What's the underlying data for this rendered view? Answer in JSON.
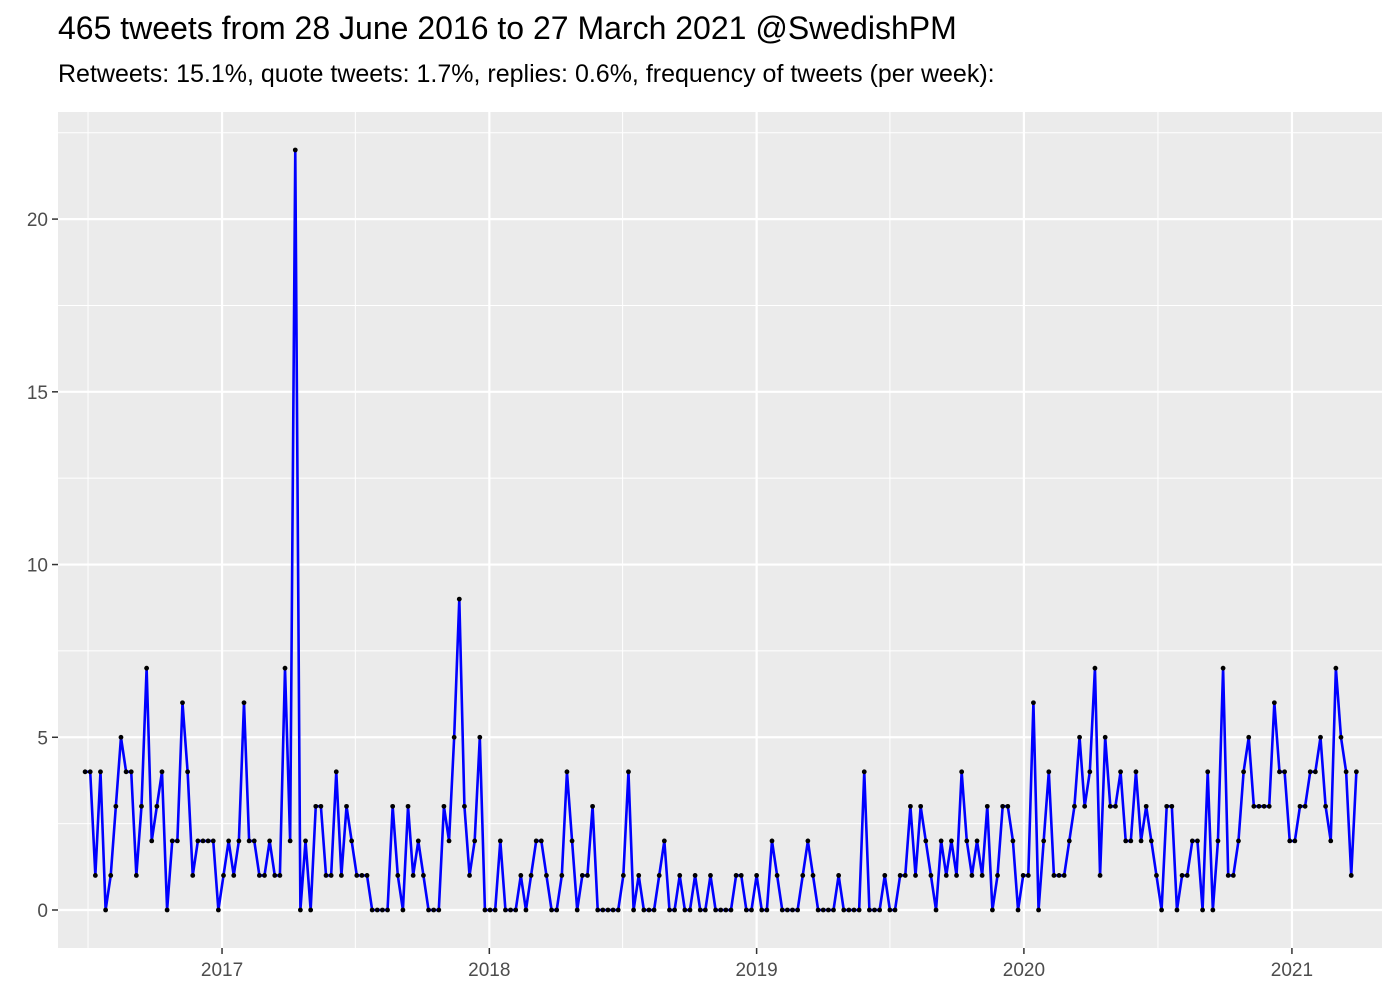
{
  "chart_data": {
    "type": "line",
    "title": "465 tweets from 28 June 2016 to 27 March 2021 @SwedishPM",
    "subtitle": "Retweets: 15.1%, quote tweets: 1.7%, replies: 0.6%, frequency of tweets (per week):",
    "xlabel": "",
    "ylabel": "",
    "x_start": "2016-06-28",
    "x_end": "2021-03-27",
    "xlim": [
      "2016-05-22",
      "2021-05-04"
    ],
    "ylim": [
      -1.1,
      23.1
    ],
    "x_ticks": [
      "2017",
      "2018",
      "2019",
      "2020",
      "2021"
    ],
    "y_ticks": [
      0,
      5,
      10,
      15,
      20
    ],
    "grid": true,
    "legend": "none",
    "colors": {
      "line": "#0000ff",
      "point": "#000000",
      "panel": "#ebebeb",
      "grid": "#ffffff"
    },
    "interval": "weekly",
    "values": [
      4,
      4,
      1,
      4,
      0,
      1,
      3,
      5,
      4,
      4,
      1,
      3,
      7,
      2,
      3,
      4,
      0,
      2,
      2,
      6,
      4,
      1,
      2,
      2,
      2,
      2,
      0,
      1,
      2,
      1,
      2,
      6,
      2,
      2,
      1,
      1,
      2,
      1,
      1,
      7,
      2,
      22,
      0,
      2,
      0,
      3,
      3,
      1,
      1,
      4,
      1,
      3,
      2,
      1,
      1,
      1,
      0,
      0,
      0,
      0,
      3,
      1,
      0,
      3,
      1,
      2,
      1,
      0,
      0,
      0,
      3,
      2,
      5,
      9,
      3,
      1,
      2,
      5,
      0,
      0,
      0,
      2,
      0,
      0,
      0,
      1,
      0,
      1,
      2,
      2,
      1,
      0,
      0,
      1,
      4,
      2,
      0,
      1,
      1,
      3,
      0,
      0,
      0,
      0,
      0,
      1,
      4,
      0,
      1,
      0,
      0,
      0,
      1,
      2,
      0,
      0,
      1,
      0,
      0,
      1,
      0,
      0,
      1,
      0,
      0,
      0,
      0,
      1,
      1,
      0,
      0,
      1,
      0,
      0,
      2,
      1,
      0,
      0,
      0,
      0,
      1,
      2,
      1,
      0,
      0,
      0,
      0,
      1,
      0,
      0,
      0,
      0,
      4,
      0,
      0,
      0,
      1,
      0,
      0,
      1,
      1,
      3,
      1,
      3,
      2,
      1,
      0,
      2,
      1,
      2,
      1,
      4,
      2,
      1,
      2,
      1,
      3,
      0,
      1,
      3,
      3,
      2,
      0,
      1,
      1,
      6,
      0,
      2,
      4,
      1,
      1,
      1,
      2,
      3,
      5,
      3,
      4,
      7,
      1,
      5,
      3,
      3,
      4,
      2,
      2,
      4,
      2,
      3,
      2,
      1,
      0,
      3,
      3,
      0,
      1,
      1,
      2,
      2,
      0,
      4,
      0,
      2,
      7,
      1,
      1,
      2,
      4,
      5,
      3,
      3,
      3,
      3,
      6,
      4,
      4,
      2,
      2,
      3,
      3,
      4,
      4,
      5,
      3,
      2,
      7,
      5,
      4,
      1,
      4
    ]
  }
}
